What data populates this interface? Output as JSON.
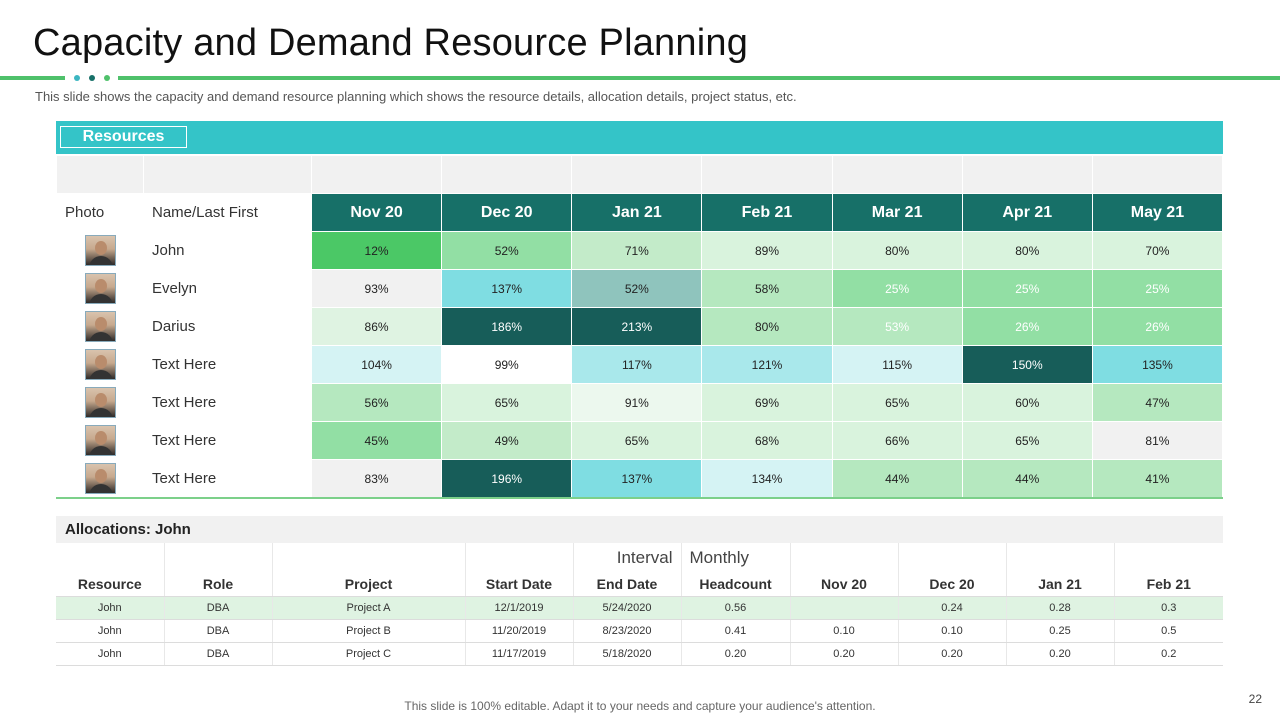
{
  "title": "Capacity and Demand Resource Planning",
  "subtitle": "This slide shows the capacity and demand resource planning which shows the resource details, allocation details, project status, etc.",
  "colors": {
    "accent_green": "#4fc16b",
    "teal_header": "#34c4c8",
    "dark_teal": "#177068",
    "dot_colors": [
      "#3cb6c1",
      "#177068",
      "#4fc16b"
    ]
  },
  "resources": {
    "label": "Resources",
    "photo_header": "Photo",
    "name_header": "Name/Last First",
    "months": [
      "Nov 20",
      "Dec 20",
      "Jan 21",
      "Feb 21",
      "Mar 21",
      "Apr 21",
      "May 21"
    ],
    "rows": [
      {
        "name": "John",
        "photo": "portrait-photo-woman",
        "values": [
          "12%",
          "52%",
          "71%",
          "89%",
          "80%",
          "80%",
          "70%"
        ],
        "colors": [
          "#4bc866",
          "#92dfa4",
          "#c3ebc9",
          "#d9f3dd",
          "#d9f3dd",
          "#d9f3dd",
          "#d9f3dd"
        ]
      },
      {
        "name": "Evelyn",
        "photo": "portrait-photo-woman",
        "values": [
          "93%",
          "137%",
          "52%",
          "58%",
          "25%",
          "25%",
          "25%"
        ],
        "colors": [
          "#f1f1f1",
          "#7fdde2",
          "#8fc4bd",
          "#b5e8bf",
          "#92dfa4",
          "#92dfa4",
          "#92dfa4"
        ]
      },
      {
        "name": "Darius",
        "photo": "portrait-photo-man",
        "values": [
          "86%",
          "186%",
          "213%",
          "80%",
          "53%",
          "26%",
          "26%"
        ],
        "colors": [
          "#dff3e2",
          "#175d59",
          "#175d59",
          "#b5e8bf",
          "#b5e8bf",
          "#92dfa4",
          "#92dfa4"
        ]
      },
      {
        "name": "Text Here",
        "photo": "portrait-photo-woman",
        "values": [
          "104%",
          "99%",
          "117%",
          "121%",
          "115%",
          "150%",
          "135%"
        ],
        "colors": [
          "#d5f3f4",
          "#ffffff",
          "#a9e8eb",
          "#a9e8eb",
          "#d5f3f4",
          "#175d59",
          "#7fdde2"
        ]
      },
      {
        "name": "Text Here",
        "photo": "portrait-photo-man",
        "values": [
          "56%",
          "65%",
          "91%",
          "69%",
          "65%",
          "60%",
          "47%"
        ],
        "colors": [
          "#b5e8bf",
          "#d9f3dd",
          "#ecf8ee",
          "#d9f3dd",
          "#d9f3dd",
          "#d9f3dd",
          "#b5e8bf"
        ]
      },
      {
        "name": "Text Here",
        "photo": "portrait-photo-man",
        "values": [
          "45%",
          "49%",
          "65%",
          "68%",
          "66%",
          "65%",
          "81%"
        ],
        "colors": [
          "#92dfa4",
          "#c3ebc9",
          "#d9f3dd",
          "#d9f3dd",
          "#d9f3dd",
          "#d9f3dd",
          "#f1f1f1"
        ]
      },
      {
        "name": "Text Here",
        "photo": "portrait-photo-man",
        "values": [
          "83%",
          "196%",
          "137%",
          "134%",
          "44%",
          "44%",
          "41%"
        ],
        "colors": [
          "#f1f1f1",
          "#175d59",
          "#7fdde2",
          "#d5f3f4",
          "#b5e8bf",
          "#b5e8bf",
          "#b5e8bf"
        ]
      }
    ]
  },
  "allocations": {
    "title": "Allocations: John",
    "interval_label": "Interval",
    "interval_value": "Monthly",
    "headers": [
      "Resource",
      "Role",
      "Project",
      "Start Date",
      "End Date",
      "Headcount",
      "Nov 20",
      "Dec 20",
      "Jan 21",
      "Feb 21"
    ],
    "rows": [
      [
        "John",
        "DBA",
        "Project A",
        "12/1/2019",
        "5/24/2020",
        "0.56",
        "",
        "0.24",
        "0.28",
        "0.3"
      ],
      [
        "John",
        "DBA",
        "Project B",
        "11/20/2019",
        "8/23/2020",
        "0.41",
        "0.10",
        "0.10",
        "0.25",
        "0.5"
      ],
      [
        "John",
        "DBA",
        "Project C",
        "11/17/2019",
        "5/18/2020",
        "0.20",
        "0.20",
        "0.20",
        "0.20",
        "0.2"
      ]
    ]
  },
  "footer": "This slide is 100% editable. Adapt it to your needs and capture your audience's attention.",
  "page_number": "22"
}
